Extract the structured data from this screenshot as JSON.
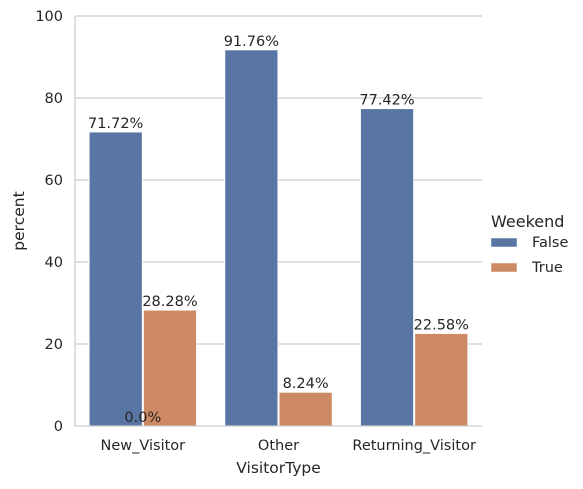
{
  "chart_data": {
    "type": "bar",
    "categories": [
      "New_Visitor",
      "Other",
      "Returning_Visitor"
    ],
    "series": [
      {
        "name": "False",
        "values": [
          71.72,
          91.76,
          77.42
        ],
        "color": "#5875a4"
      },
      {
        "name": "True",
        "values": [
          28.28,
          8.24,
          22.58
        ],
        "color": "#cc8963"
      }
    ],
    "bar_labels": [
      [
        "71.72%",
        "91.76%",
        "77.42%"
      ],
      [
        "28.28%",
        "8.24%",
        "22.58%"
      ]
    ],
    "extra_annotation": {
      "text": "0.0%",
      "category_index": 0,
      "value": 0
    },
    "xlabel": "VisitorType",
    "ylabel": "percent",
    "ylim": [
      0,
      100
    ],
    "yticks": [
      0,
      20,
      40,
      60,
      80,
      100
    ],
    "grid": "horizontal",
    "legend": {
      "title": "Weekend",
      "placement": "right"
    }
  }
}
